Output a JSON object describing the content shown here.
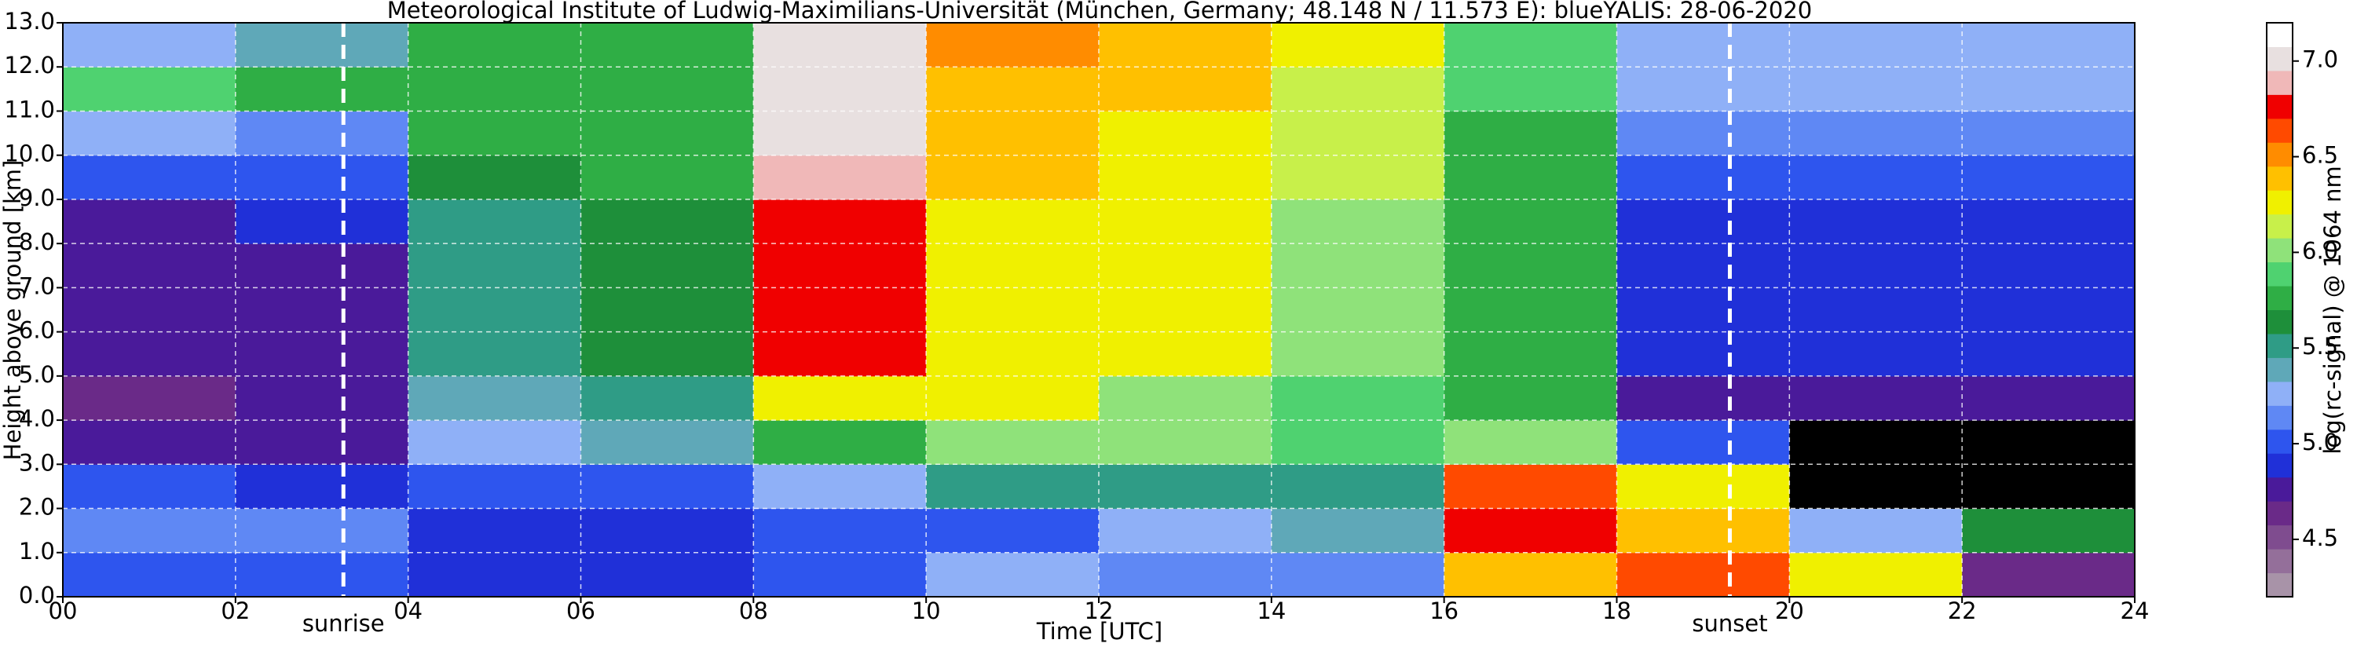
{
  "chart_data": {
    "type": "heatmap",
    "title": "Meteorological Institute of Ludwig-Maximilians-Universität (München, Germany; 48.148 N / 11.573 E):    blueYALIS: 28-06-2020",
    "xlabel": "Time [UTC]",
    "ylabel": "Height above ground [km]",
    "colorbar_label": "log(rc-signal) @ 1064 nm",
    "x_edges": [
      0,
      2,
      4,
      6,
      8,
      10,
      12,
      14,
      16,
      18,
      20,
      22,
      24
    ],
    "y_edges": [
      0,
      1,
      2,
      3,
      4,
      5,
      6,
      7,
      8,
      9,
      10,
      11,
      12,
      13
    ],
    "z": [
      [
        5.0,
        5.0,
        4.9,
        4.9,
        5.0,
        5.2,
        5.1,
        5.1,
        6.4,
        6.6,
        6.3,
        4.6
      ],
      [
        5.1,
        5.1,
        4.9,
        4.9,
        5.0,
        5.0,
        5.3,
        5.4,
        6.8,
        6.4,
        5.2,
        5.6
      ],
      [
        5.0,
        4.9,
        5.0,
        5.0,
        5.2,
        5.5,
        5.5,
        5.5,
        6.6,
        6.2,
        null,
        null
      ],
      [
        4.7,
        4.7,
        5.3,
        5.4,
        5.7,
        6.0,
        6.0,
        5.9,
        6.0,
        5.0,
        null,
        null
      ],
      [
        4.6,
        4.7,
        5.4,
        5.5,
        6.3,
        6.2,
        6.0,
        5.9,
        5.8,
        4.8,
        4.8,
        4.8
      ],
      [
        4.7,
        4.8,
        5.5,
        5.6,
        6.8,
        6.3,
        6.2,
        6.0,
        5.8,
        4.9,
        4.9,
        4.9
      ],
      [
        4.7,
        4.8,
        5.5,
        5.6,
        6.8,
        6.3,
        6.2,
        6.0,
        5.8,
        4.9,
        4.9,
        4.9
      ],
      [
        4.8,
        4.8,
        5.5,
        5.6,
        6.8,
        6.3,
        6.2,
        6.0,
        5.8,
        4.9,
        4.9,
        4.9
      ],
      [
        4.8,
        4.9,
        5.5,
        5.6,
        6.8,
        6.3,
        6.2,
        6.0,
        5.8,
        4.9,
        4.9,
        4.9
      ],
      [
        5.0,
        5.0,
        5.6,
        5.7,
        6.9,
        6.4,
        6.3,
        6.1,
        5.8,
        5.0,
        5.0,
        5.0
      ],
      [
        5.2,
        5.1,
        5.7,
        5.7,
        7.0,
        6.4,
        6.3,
        6.1,
        5.8,
        5.1,
        5.1,
        5.1
      ],
      [
        5.9,
        5.8,
        5.7,
        5.7,
        7.0,
        6.4,
        6.4,
        6.1,
        5.9,
        5.2,
        5.2,
        5.2
      ],
      [
        5.3,
        5.4,
        5.8,
        5.8,
        7.0,
        6.5,
        6.4,
        6.2,
        5.9,
        5.3,
        5.3,
        5.3
      ]
    ],
    "xlim": [
      0,
      24
    ],
    "ylim": [
      0,
      13
    ],
    "xticks": [
      {
        "value": 0,
        "label": "00"
      },
      {
        "value": 2,
        "label": "02"
      },
      {
        "value": 4,
        "label": "04"
      },
      {
        "value": 6,
        "label": "06"
      },
      {
        "value": 8,
        "label": "08"
      },
      10,
      12,
      14,
      16,
      18,
      20,
      22,
      24
    ],
    "yticks": [
      {
        "value": 0,
        "label": "0.0"
      },
      {
        "value": 1,
        "label": "1.0"
      },
      {
        "value": 2,
        "label": "2.0"
      },
      {
        "value": 3,
        "label": "3.0"
      },
      {
        "value": 4,
        "label": "4.0"
      },
      {
        "value": 5,
        "label": "5.0"
      },
      {
        "value": 6,
        "label": "6.0"
      },
      {
        "value": 7,
        "label": "7.0"
      },
      {
        "value": 8,
        "label": "8.0"
      },
      {
        "value": 9,
        "label": "9.0"
      },
      {
        "value": 10,
        "label": "10.0"
      },
      {
        "value": 11,
        "label": "11.0"
      },
      {
        "value": 12,
        "label": "12.0"
      },
      {
        "value": 13,
        "label": "13.0"
      }
    ],
    "grid": true,
    "clim": [
      4.2,
      7.2
    ],
    "cticks": [
      4.5,
      {
        "value": 5,
        "label": "5.0"
      },
      5.5,
      {
        "value": 6,
        "label": "6.0"
      },
      6.5,
      {
        "value": 7,
        "label": "7.0"
      }
    ],
    "colormap": [
      "#a893a8",
      "#946f9a",
      "#7f4c8f",
      "#6a2a88",
      "#4a1a9a",
      "#2030d8",
      "#2e55ee",
      "#5f88f4",
      "#8fb0f7",
      "#5fa8b8",
      "#2f9c86",
      "#1e8f3a",
      "#2fae45",
      "#4fd270",
      "#8fe27a",
      "#c8f04a",
      "#f0f000",
      "#ffc000",
      "#ff8c00",
      "#ff4a00",
      "#f00000",
      "#f0b8b8",
      "#e8e0e0",
      "#ffffff"
    ],
    "missing_color": "#000000",
    "annotations": [
      {
        "label": "sunrise",
        "x": 3.25
      },
      {
        "label": "sunset",
        "x": 19.31
      }
    ]
  }
}
